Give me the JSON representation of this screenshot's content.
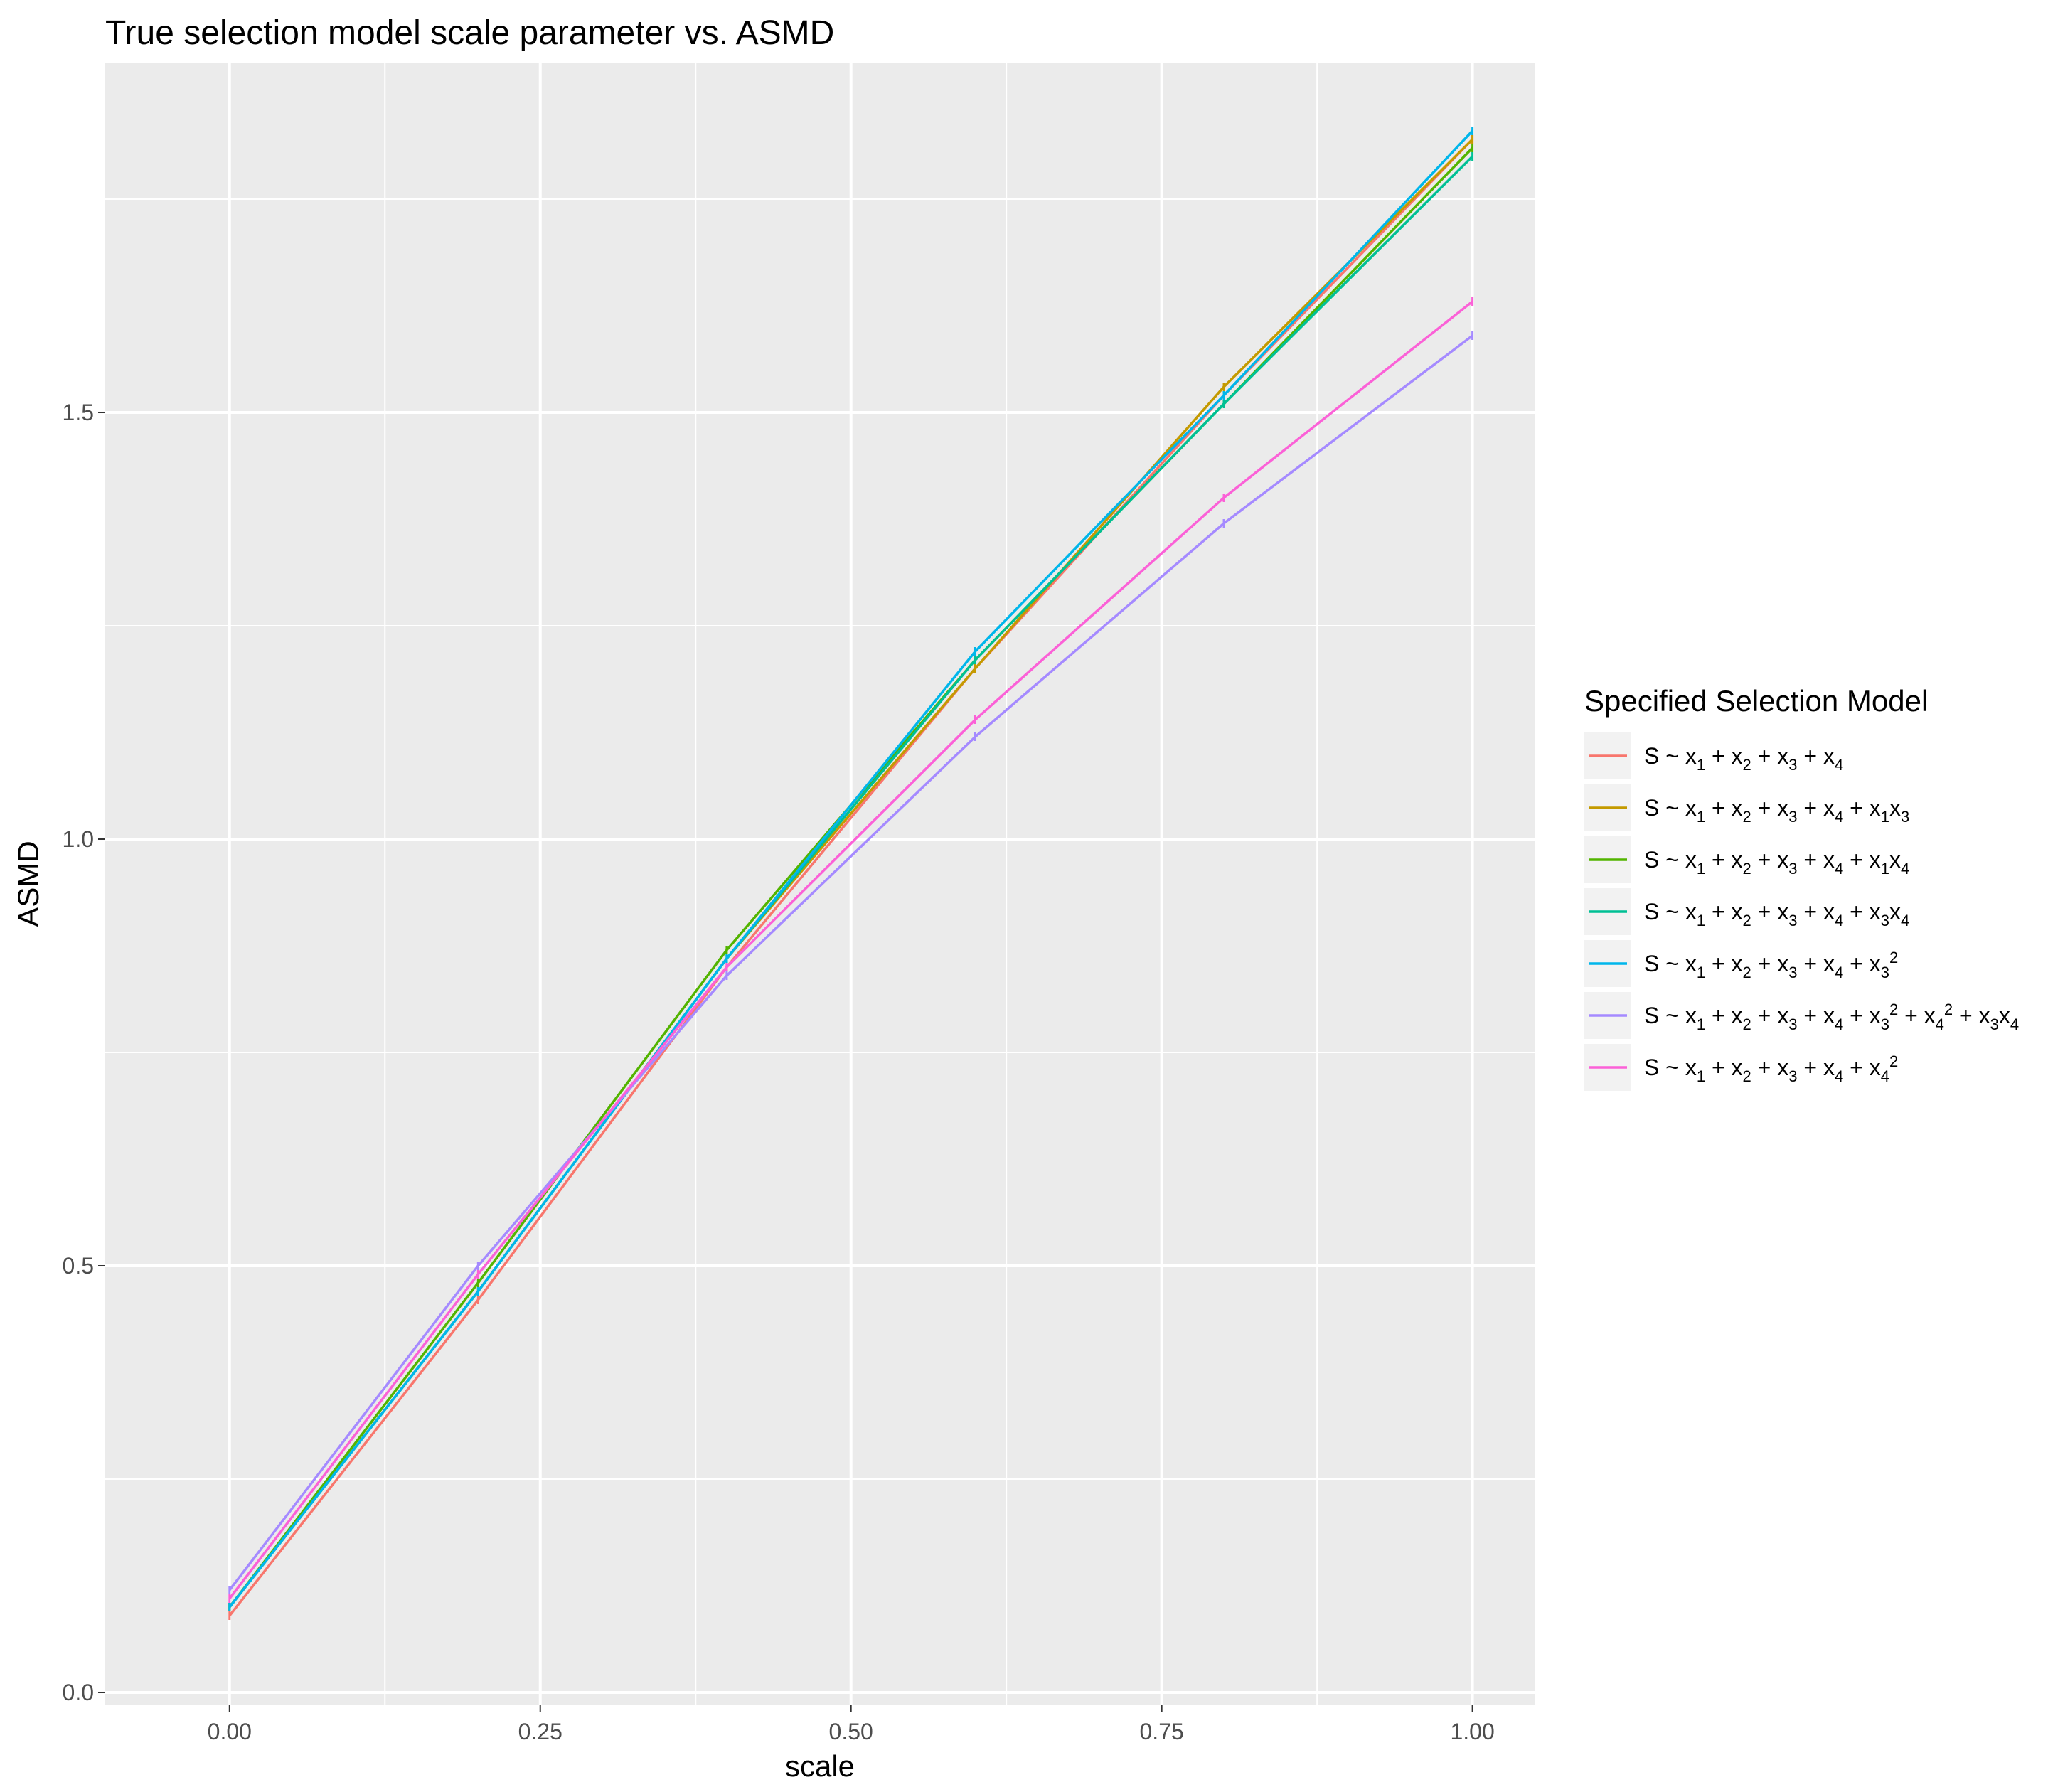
{
  "chart_data": {
    "type": "line",
    "title": "True selection model scale parameter vs. ASMD",
    "xlabel": "scale",
    "ylabel": "ASMD",
    "xlim": [
      -0.1,
      1.05
    ],
    "ylim": [
      -0.015,
      1.91
    ],
    "x_ticks": [
      {
        "value": 0.0,
        "label": "0.00"
      },
      {
        "value": 0.25,
        "label": "0.25"
      },
      {
        "value": 0.5,
        "label": "0.50"
      },
      {
        "value": 0.75,
        "label": "0.75"
      },
      {
        "value": 1.0,
        "label": "1.00"
      }
    ],
    "y_ticks": [
      {
        "value": 0.0,
        "label": "0.0"
      },
      {
        "value": 0.5,
        "label": "0.5"
      },
      {
        "value": 1.0,
        "label": "1.0"
      },
      {
        "value": 1.5,
        "label": "1.5"
      }
    ],
    "x_minor": [
      0.125,
      0.375,
      0.625,
      0.875
    ],
    "y_minor": [
      0.25,
      0.75,
      1.25,
      1.75
    ],
    "grid": true,
    "background": "#ebebeb",
    "gridline_color": "#ffffff",
    "legend_position": "right",
    "legend_title": "Specified Selection Model",
    "x": [
      0.0,
      0.2,
      0.4,
      0.6,
      0.8,
      1.0
    ],
    "series": [
      {
        "name": "S ~ x1 + x2 + x3 + x4",
        "color": "#F8766D",
        "label_parts": [
          [
            "S ~ x"
          ],
          [
            "1",
            "sub"
          ],
          [
            " + x"
          ],
          [
            "2",
            "sub"
          ],
          [
            " + x"
          ],
          [
            "3",
            "sub"
          ],
          [
            " + x"
          ],
          [
            "4",
            "sub"
          ]
        ],
        "values": [
          0.09,
          0.46,
          0.85,
          1.2,
          1.52,
          1.82
        ]
      },
      {
        "name": "S ~ x1 + x2 + x3 + x4 + x1x3",
        "color": "#C49A00",
        "label_parts": [
          [
            "S ~ x"
          ],
          [
            "1",
            "sub"
          ],
          [
            " + x"
          ],
          [
            "2",
            "sub"
          ],
          [
            " + x"
          ],
          [
            "3",
            "sub"
          ],
          [
            " + x"
          ],
          [
            "4",
            "sub"
          ],
          [
            " + x"
          ],
          [
            "1",
            "sub"
          ],
          [
            "x"
          ],
          [
            "3",
            "sub"
          ]
        ],
        "values": [
          0.1,
          0.47,
          0.86,
          1.2,
          1.53,
          1.82
        ]
      },
      {
        "name": "S ~ x1 + x2 + x3 + x4 + x1x4",
        "color": "#53B400",
        "label_parts": [
          [
            "S ~ x"
          ],
          [
            "1",
            "sub"
          ],
          [
            " + x"
          ],
          [
            "2",
            "sub"
          ],
          [
            " + x"
          ],
          [
            "3",
            "sub"
          ],
          [
            " + x"
          ],
          [
            "4",
            "sub"
          ],
          [
            " + x"
          ],
          [
            "1",
            "sub"
          ],
          [
            "x"
          ],
          [
            "4",
            "sub"
          ]
        ],
        "values": [
          0.1,
          0.48,
          0.87,
          1.21,
          1.51,
          1.81
        ]
      },
      {
        "name": "S ~ x1 + x2 + x3 + x4 + x3x4",
        "color": "#00C094",
        "label_parts": [
          [
            "S ~ x"
          ],
          [
            "1",
            "sub"
          ],
          [
            " + x"
          ],
          [
            "2",
            "sub"
          ],
          [
            " + x"
          ],
          [
            "3",
            "sub"
          ],
          [
            " + x"
          ],
          [
            "4",
            "sub"
          ],
          [
            " + x"
          ],
          [
            "3",
            "sub"
          ],
          [
            "x"
          ],
          [
            "4",
            "sub"
          ]
        ],
        "values": [
          0.1,
          0.47,
          0.86,
          1.21,
          1.51,
          1.8
        ]
      },
      {
        "name": "S ~ x1 + x2 + x3 + x4 + x3^2",
        "color": "#00B6EB",
        "label_parts": [
          [
            "S ~ x"
          ],
          [
            "1",
            "sub"
          ],
          [
            " + x"
          ],
          [
            "2",
            "sub"
          ],
          [
            " + x"
          ],
          [
            "3",
            "sub"
          ],
          [
            " + x"
          ],
          [
            "4",
            "sub"
          ],
          [
            " + x"
          ],
          [
            "3",
            "sub"
          ],
          [
            "2",
            "sup"
          ]
        ],
        "values": [
          0.1,
          0.47,
          0.86,
          1.22,
          1.52,
          1.83
        ]
      },
      {
        "name": "S ~ x1 + x2 + x3 + x4 + x3^2 + x4^2 + x3x4",
        "color": "#A58AFF",
        "label_parts": [
          [
            "S ~ x"
          ],
          [
            "1",
            "sub"
          ],
          [
            " + x"
          ],
          [
            "2",
            "sub"
          ],
          [
            " + x"
          ],
          [
            "3",
            "sub"
          ],
          [
            " + x"
          ],
          [
            "4",
            "sub"
          ],
          [
            " + x"
          ],
          [
            "3",
            "sub"
          ],
          [
            "2",
            "sup"
          ],
          [
            " + x"
          ],
          [
            "4",
            "sub"
          ],
          [
            "2",
            "sup"
          ],
          [
            " + x"
          ],
          [
            "3",
            "sub"
          ],
          [
            "x"
          ],
          [
            "4",
            "sub"
          ]
        ],
        "values": [
          0.12,
          0.5,
          0.84,
          1.12,
          1.37,
          1.59
        ]
      },
      {
        "name": "S ~ x1 + x2 + x3 + x4 + x4^2",
        "color": "#FB61D7",
        "label_parts": [
          [
            "S ~ x"
          ],
          [
            "1",
            "sub"
          ],
          [
            " + x"
          ],
          [
            "2",
            "sub"
          ],
          [
            " + x"
          ],
          [
            "3",
            "sub"
          ],
          [
            " + x"
          ],
          [
            "4",
            "sub"
          ],
          [
            " + x"
          ],
          [
            "4",
            "sub"
          ],
          [
            "2",
            "sup"
          ]
        ],
        "values": [
          0.11,
          0.49,
          0.85,
          1.14,
          1.4,
          1.63
        ]
      }
    ]
  }
}
